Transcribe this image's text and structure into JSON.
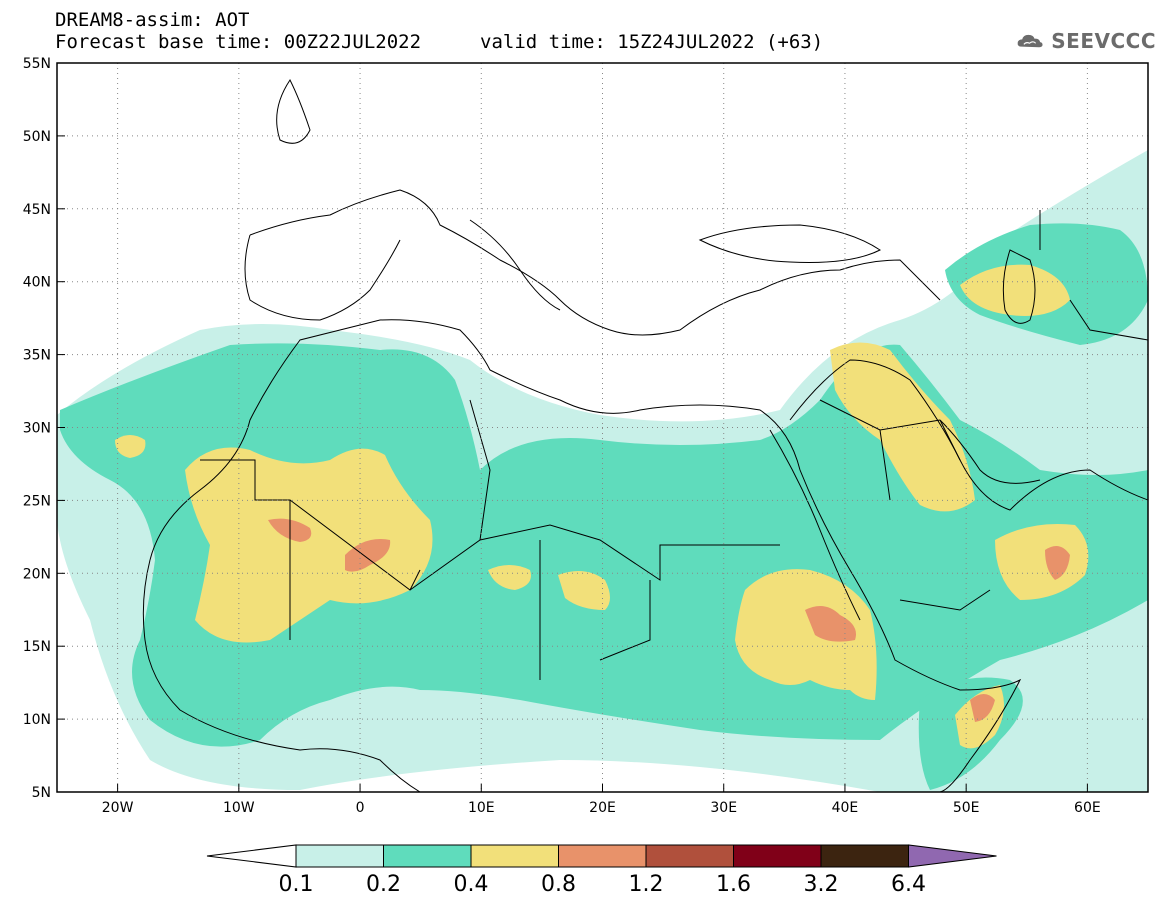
{
  "header": {
    "line1": "DREAM8-assim: AOT",
    "line2": "Forecast base time: 00Z22JUL2022",
    "valid": "valid time: 15Z24JUL2022 (+63)",
    "logo_text": "SEEVCCC"
  },
  "map": {
    "lon_range": [
      -25,
      65
    ],
    "lat_range": [
      5,
      55
    ],
    "lon_ticks": [
      {
        "value": -20,
        "label": "20W"
      },
      {
        "value": -10,
        "label": "10W"
      },
      {
        "value": 0,
        "label": "0"
      },
      {
        "value": 10,
        "label": "10E"
      },
      {
        "value": 20,
        "label": "20E"
      },
      {
        "value": 30,
        "label": "30E"
      },
      {
        "value": 40,
        "label": "40E"
      },
      {
        "value": 50,
        "label": "50E"
      },
      {
        "value": 60,
        "label": "60E"
      }
    ],
    "lat_ticks": [
      {
        "value": 55,
        "label": "55N"
      },
      {
        "value": 50,
        "label": "50N"
      },
      {
        "value": 45,
        "label": "45N"
      },
      {
        "value": 40,
        "label": "40N"
      },
      {
        "value": 35,
        "label": "35N"
      },
      {
        "value": 30,
        "label": "30N"
      },
      {
        "value": 25,
        "label": "25N"
      },
      {
        "value": 20,
        "label": "20N"
      },
      {
        "value": 15,
        "label": "15N"
      },
      {
        "value": 10,
        "label": "10N"
      },
      {
        "value": 5,
        "label": "5N"
      }
    ],
    "grid": true
  },
  "colorbar": {
    "boundaries": [
      "0.1",
      "0.2",
      "0.4",
      "0.8",
      "1.2",
      "1.6",
      "3.2",
      "6.4"
    ],
    "colors": [
      "#c8f0e8",
      "#5fdcbc",
      "#f2e07a",
      "#e8926a",
      "#b0503c",
      "#800018",
      "#3c2410",
      "#9068b0"
    ],
    "low_extension_color": "#ffffff"
  },
  "colors": {
    "land_line": "#000000",
    "level_0.1": "#c8f0e8",
    "level_0.2": "#5fdcbc",
    "level_0.4": "#f2e07a",
    "level_0.8": "#e8926a"
  }
}
